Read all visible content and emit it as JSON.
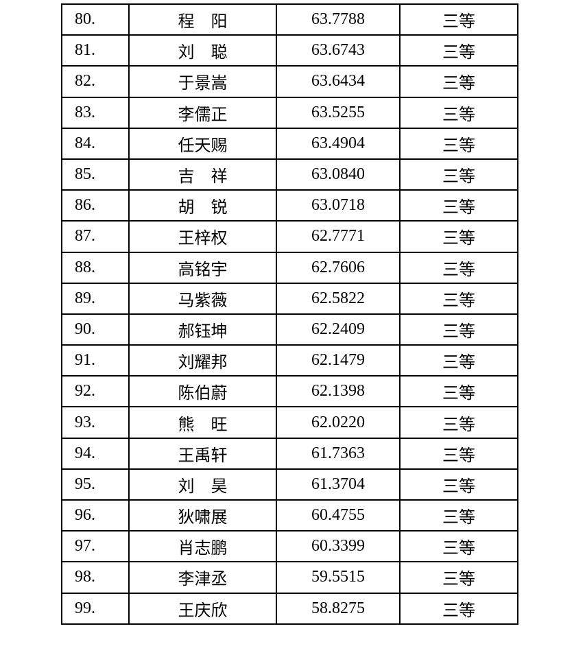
{
  "rows": [
    {
      "no": "80.",
      "name": "程　阳",
      "score": "63.7788",
      "grade": "三等"
    },
    {
      "no": "81.",
      "name": "刘　聪",
      "score": "63.6743",
      "grade": "三等"
    },
    {
      "no": "82.",
      "name": "于景嵩",
      "score": "63.6434",
      "grade": "三等"
    },
    {
      "no": "83.",
      "name": "李儒正",
      "score": "63.5255",
      "grade": "三等"
    },
    {
      "no": "84.",
      "name": "任天赐",
      "score": "63.4904",
      "grade": "三等"
    },
    {
      "no": "85.",
      "name": "吉　祥",
      "score": "63.0840",
      "grade": "三等"
    },
    {
      "no": "86.",
      "name": "胡　锐",
      "score": "63.0718",
      "grade": "三等"
    },
    {
      "no": "87.",
      "name": "王梓权",
      "score": "62.7771",
      "grade": "三等"
    },
    {
      "no": "88.",
      "name": "高铭宇",
      "score": "62.7606",
      "grade": "三等"
    },
    {
      "no": "89.",
      "name": "马紫薇",
      "score": "62.5822",
      "grade": "三等"
    },
    {
      "no": "90.",
      "name": "郝钰坤",
      "score": "62.2409",
      "grade": "三等"
    },
    {
      "no": "91.",
      "name": "刘耀邦",
      "score": "62.1479",
      "grade": "三等"
    },
    {
      "no": "92.",
      "name": "陈伯蔚",
      "score": "62.1398",
      "grade": "三等"
    },
    {
      "no": "93.",
      "name": "熊　旺",
      "score": "62.0220",
      "grade": "三等"
    },
    {
      "no": "94.",
      "name": "王禹轩",
      "score": "61.7363",
      "grade": "三等"
    },
    {
      "no": "95.",
      "name": "刘　昊",
      "score": "61.3704",
      "grade": "三等"
    },
    {
      "no": "96.",
      "name": "狄啸展",
      "score": "60.4755",
      "grade": "三等"
    },
    {
      "no": "97.",
      "name": "肖志鹏",
      "score": "60.3399",
      "grade": "三等"
    },
    {
      "no": "98.",
      "name": "李津丞",
      "score": "59.5515",
      "grade": "三等"
    },
    {
      "no": "99.",
      "name": "王庆欣",
      "score": "58.8275",
      "grade": "三等"
    }
  ]
}
